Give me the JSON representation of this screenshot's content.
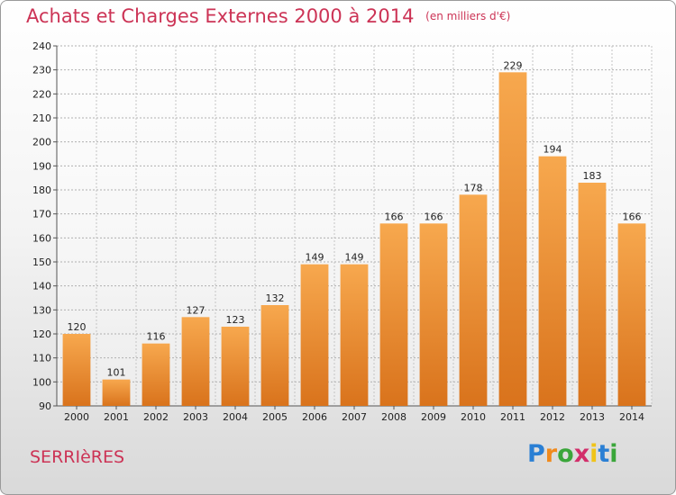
{
  "header": {
    "title": "Achats et Charges Externes 2000 à 2014",
    "unit": "(en milliers d'€)"
  },
  "footer": {
    "city": "SERRIèRES",
    "logo": "Proxiti"
  },
  "colors": {
    "title": "#cc3355",
    "bar_top": "#f7a84e",
    "bar_bottom": "#d9731c"
  },
  "chart_data": {
    "type": "bar",
    "title": "Achats et Charges Externes 2000 à 2014",
    "ylabel": "",
    "xlabel": "",
    "categories": [
      "2000",
      "2001",
      "2002",
      "2003",
      "2004",
      "2005",
      "2006",
      "2007",
      "2008",
      "2009",
      "2010",
      "2011",
      "2012",
      "2013",
      "2014"
    ],
    "values": [
      120,
      101,
      116,
      127,
      123,
      132,
      149,
      149,
      166,
      166,
      178,
      229,
      194,
      183,
      166
    ],
    "ylim": [
      90,
      240
    ],
    "yticks": [
      90,
      100,
      110,
      120,
      130,
      140,
      150,
      160,
      170,
      180,
      190,
      200,
      210,
      220,
      230,
      240
    ],
    "grid": true,
    "legend": "none"
  }
}
